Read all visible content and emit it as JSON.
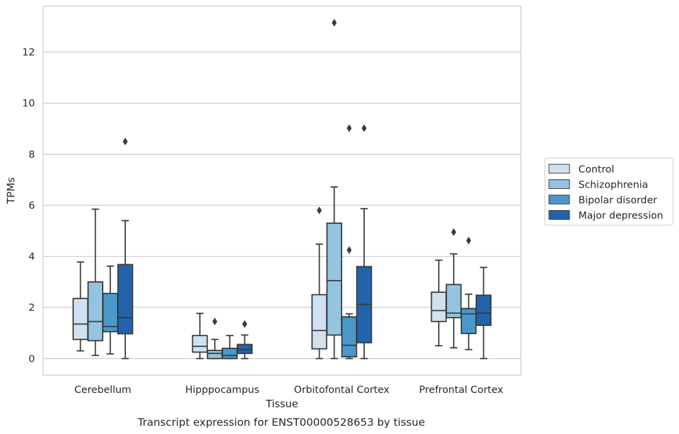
{
  "caption": "Transcript expression for ENST00000528653 by tissue",
  "chart_data": {
    "type": "box",
    "xlabel": "Tissue",
    "ylabel": "TPMs",
    "ylim": [
      -0.65,
      13.8
    ],
    "yticks": [
      0,
      2,
      4,
      6,
      8,
      10,
      12
    ],
    "grid": true,
    "legend_position": "right",
    "categories": [
      "Cerebellum",
      "Hipppocampus",
      "Orbitofontal Cortex",
      "Prefrontal Cortex"
    ],
    "series": [
      {
        "name": "Control",
        "color": "#d0e1f2",
        "boxes": [
          {
            "whislo": 0.3,
            "q1": 0.75,
            "med": 1.35,
            "q3": 2.35,
            "whishi": 3.78,
            "fliers": []
          },
          {
            "whislo": 0.0,
            "q1": 0.25,
            "med": 0.48,
            "q3": 0.9,
            "whishi": 1.77,
            "fliers": []
          },
          {
            "whislo": 0.0,
            "q1": 0.38,
            "med": 1.1,
            "q3": 2.5,
            "whishi": 4.48,
            "fliers": [
              5.8
            ]
          },
          {
            "whislo": 0.5,
            "q1": 1.45,
            "med": 1.88,
            "q3": 2.6,
            "whishi": 3.85,
            "fliers": []
          }
        ]
      },
      {
        "name": "Schizophrenia",
        "color": "#94c4df",
        "boxes": [
          {
            "whislo": 0.12,
            "q1": 0.7,
            "med": 1.45,
            "q3": 3.0,
            "whishi": 5.85,
            "fliers": []
          },
          {
            "whislo": 0.0,
            "q1": 0.0,
            "med": 0.2,
            "q3": 0.32,
            "whishi": 0.75,
            "fliers": [
              1.45
            ]
          },
          {
            "whislo": 0.0,
            "q1": 0.92,
            "med": 3.05,
            "q3": 5.3,
            "whishi": 6.72,
            "fliers": [
              13.15
            ]
          },
          {
            "whislo": 0.42,
            "q1": 1.6,
            "med": 1.78,
            "q3": 2.9,
            "whishi": 4.1,
            "fliers": [
              4.95
            ]
          }
        ]
      },
      {
        "name": "Bipolar disorder",
        "color": "#4a98c9",
        "boxes": [
          {
            "whislo": 0.18,
            "q1": 1.05,
            "med": 1.25,
            "q3": 2.55,
            "whishi": 3.62,
            "fliers": []
          },
          {
            "whislo": 0.0,
            "q1": 0.0,
            "med": 0.12,
            "q3": 0.4,
            "whishi": 0.9,
            "fliers": []
          },
          {
            "whislo": 0.0,
            "q1": 0.07,
            "med": 0.52,
            "q3": 1.63,
            "whishi": 1.75,
            "fliers": [
              4.25,
              9.02
            ]
          },
          {
            "whislo": 0.35,
            "q1": 0.98,
            "med": 1.75,
            "q3": 1.95,
            "whishi": 2.52,
            "fliers": [
              4.62
            ]
          }
        ]
      },
      {
        "name": "Major depression",
        "color": "#2164ab",
        "boxes": [
          {
            "whislo": 0.0,
            "q1": 0.97,
            "med": 1.6,
            "q3": 3.68,
            "whishi": 5.4,
            "fliers": [
              8.5
            ]
          },
          {
            "whislo": 0.0,
            "q1": 0.2,
            "med": 0.35,
            "q3": 0.55,
            "whishi": 0.92,
            "fliers": [
              1.35
            ]
          },
          {
            "whislo": 0.0,
            "q1": 0.62,
            "med": 2.12,
            "q3": 3.6,
            "whishi": 5.87,
            "fliers": [
              9.02
            ]
          },
          {
            "whislo": 0.0,
            "q1": 1.3,
            "med": 1.78,
            "q3": 2.48,
            "whishi": 3.57,
            "fliers": []
          }
        ]
      }
    ]
  }
}
